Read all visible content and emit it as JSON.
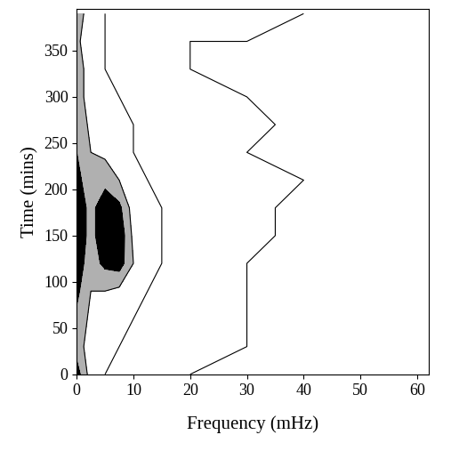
{
  "chart_data": {
    "type": "contour",
    "x_label": "Frequency (mHz)",
    "y_label": "Time (mins)",
    "x": [
      0,
      2.5,
      5,
      7.5,
      10,
      15,
      20,
      30,
      40,
      50,
      60
    ],
    "y": [
      0,
      30,
      60,
      90,
      120,
      150,
      180,
      210,
      240,
      270,
      300,
      330,
      360,
      390
    ],
    "z": [
      [
        0.9,
        0.5,
        0.4,
        0.3,
        0.3,
        0.3,
        0.2,
        0.2,
        0.2,
        0.2,
        0.2
      ],
      [
        0.7,
        0.5,
        0.45,
        0.4,
        0.35,
        0.3,
        0.25,
        0.2,
        0.15,
        0.15,
        0.1
      ],
      [
        0.75,
        0.55,
        0.5,
        0.45,
        0.4,
        0.35,
        0.25,
        0.2,
        0.15,
        0.1,
        0.1
      ],
      [
        0.85,
        0.6,
        0.6,
        0.55,
        0.45,
        0.35,
        0.3,
        0.2,
        0.15,
        0.1,
        0.1
      ],
      [
        0.9,
        0.7,
        0.85,
        0.9,
        0.6,
        0.4,
        0.3,
        0.2,
        0.15,
        0.1,
        0.1
      ],
      [
        0.9,
        0.75,
        0.9,
        0.95,
        0.55,
        0.4,
        0.3,
        0.25,
        0.15,
        0.1,
        0.1
      ],
      [
        0.9,
        0.75,
        0.9,
        0.85,
        0.5,
        0.4,
        0.3,
        0.25,
        0.15,
        0.1,
        0.1
      ],
      [
        0.85,
        0.7,
        0.75,
        0.6,
        0.45,
        0.35,
        0.3,
        0.25,
        0.2,
        0.1,
        0.1
      ],
      [
        0.8,
        0.6,
        0.55,
        0.5,
        0.4,
        0.35,
        0.3,
        0.2,
        0.15,
        0.1,
        0.1
      ],
      [
        0.75,
        0.55,
        0.5,
        0.45,
        0.4,
        0.35,
        0.3,
        0.25,
        0.15,
        0.1,
        0.1
      ],
      [
        0.7,
        0.5,
        0.45,
        0.4,
        0.35,
        0.3,
        0.25,
        0.2,
        0.15,
        0.1,
        0.1
      ],
      [
        0.7,
        0.5,
        0.4,
        0.35,
        0.3,
        0.3,
        0.2,
        0.2,
        0.15,
        0.1,
        0.1
      ],
      [
        0.65,
        0.45,
        0.4,
        0.35,
        0.3,
        0.25,
        0.2,
        0.2,
        0.15,
        0.1,
        0.1
      ],
      [
        0.7,
        0.5,
        0.4,
        0.35,
        0.3,
        0.3,
        0.25,
        0.25,
        0.2,
        0.2,
        0.2
      ]
    ],
    "levels": [
      0,
      0.2,
      0.4,
      0.6,
      0.8,
      1.0
    ],
    "colors": [
      "#ffffff",
      "#ffffff",
      "#ffffff",
      "#b0b0b0",
      "#000000"
    ],
    "color": "#000000",
    "xlim": [
      0,
      62
    ],
    "ylim": [
      0,
      395
    ],
    "xticks": [
      0,
      10,
      20,
      30,
      40,
      50,
      60
    ],
    "yticks": [
      0,
      50,
      100,
      150,
      200,
      250,
      300,
      350
    ]
  }
}
